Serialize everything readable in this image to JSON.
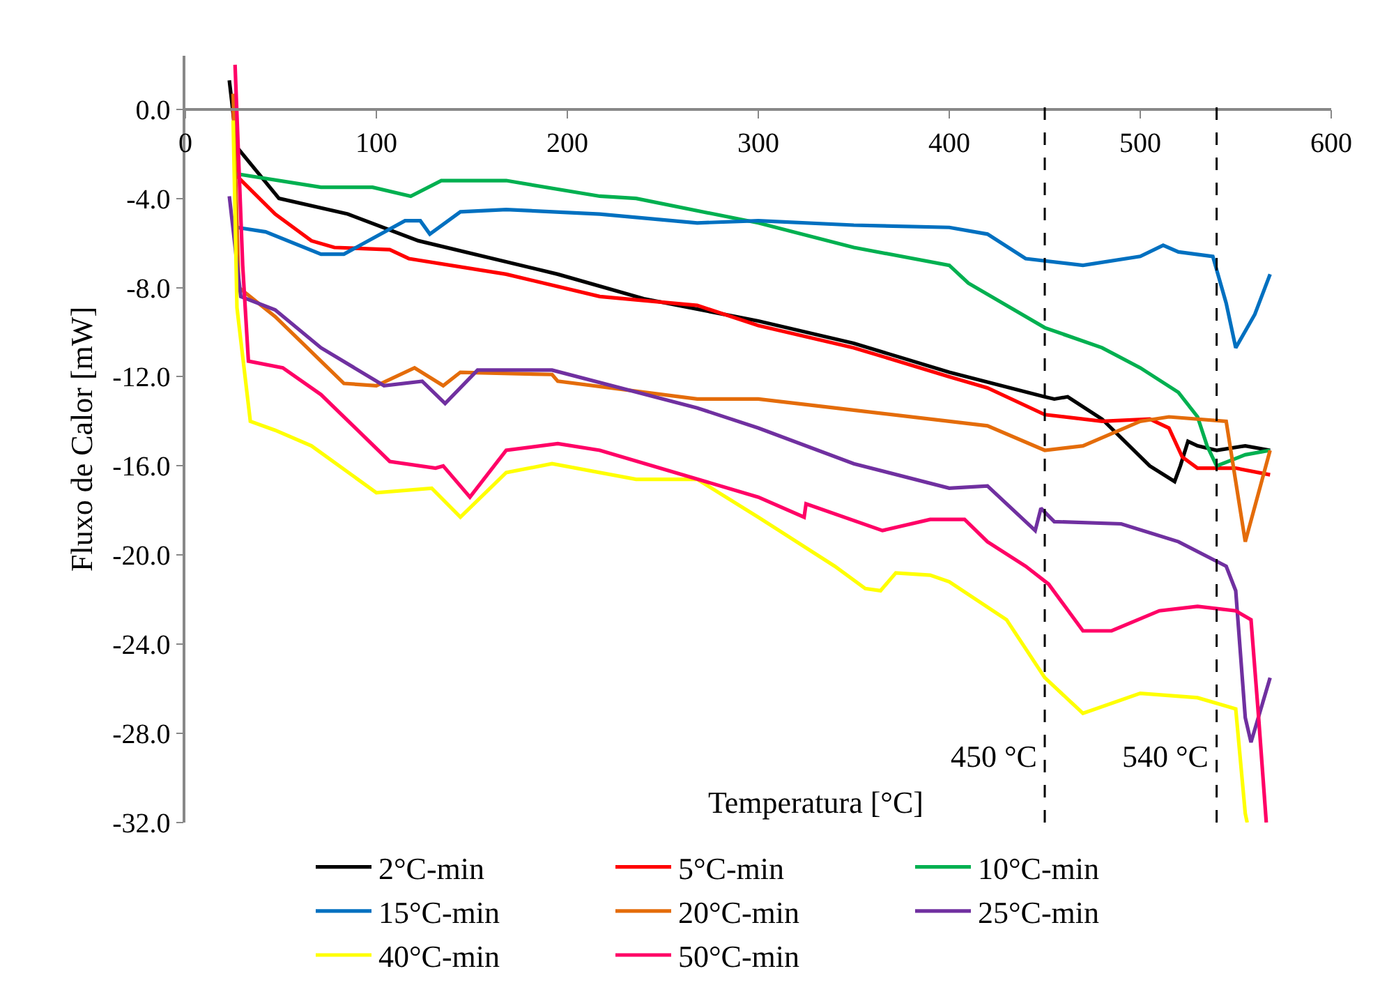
{
  "chart_data": {
    "type": "line",
    "xlabel": "Temperatura [°C]",
    "ylabel": "Fluxo de Calor [mW]",
    "xlim": [
      0,
      600
    ],
    "xticks": [
      0,
      100,
      200,
      300,
      400,
      500,
      600
    ],
    "ylim": [
      -32,
      2.4
    ],
    "yticks": [
      {
        "value": 0,
        "label": "0.0"
      },
      {
        "value": -4,
        "label": "-4.0"
      },
      {
        "value": -8,
        "label": "-8.0"
      },
      {
        "value": -12,
        "label": "-12.0"
      },
      {
        "value": -16,
        "label": "-16.0"
      },
      {
        "value": -20,
        "label": "-20.0"
      },
      {
        "value": -24,
        "label": "-24.0"
      },
      {
        "value": -28,
        "label": "-28.0"
      },
      {
        "value": -32,
        "label": "-32.0"
      }
    ],
    "grid": false,
    "legend": "bottom",
    "marker": "none",
    "line_style": "solid",
    "ref_lines": [
      {
        "axis": "x",
        "value": 450,
        "label": "450 °C",
        "color": "#000000",
        "line_style": "dashed"
      },
      {
        "axis": "x",
        "value": 540,
        "label": "540 °C",
        "color": "#000000",
        "line_style": "dashed"
      }
    ],
    "series": [
      {
        "name": "2°C-min",
        "color": "#000000",
        "x": [
          23,
          27,
          49,
          85,
          122,
          195,
          240,
          300,
          350,
          400,
          450,
          455,
          462,
          480,
          505,
          518,
          521,
          525,
          530,
          540,
          555,
          568
        ],
        "values": [
          1.3,
          -1.7,
          -4.0,
          -4.7,
          -5.9,
          -7.4,
          -8.5,
          -9.5,
          -10.5,
          -11.8,
          -12.9,
          -13.0,
          -12.9,
          -13.9,
          -16.0,
          -16.7,
          -16.0,
          -14.9,
          -15.1,
          -15.3,
          -15.1,
          -15.3
        ]
      },
      {
        "name": "5°C-min",
        "color": "#ff0000",
        "x": [
          25,
          27,
          47,
          66,
          78,
          107,
          117,
          168,
          217,
          268,
          300,
          350,
          400,
          420,
          450,
          480,
          505,
          515,
          522,
          530,
          550,
          568
        ],
        "values": [
          0.0,
          -3.0,
          -4.7,
          -5.9,
          -6.2,
          -6.3,
          -6.7,
          -7.4,
          -8.4,
          -8.8,
          -9.7,
          -10.7,
          -12.0,
          -12.5,
          -13.7,
          -14.0,
          -13.9,
          -14.3,
          -15.6,
          -16.1,
          -16.1,
          -16.4
        ]
      },
      {
        "name": "10°C-min",
        "color": "#00b050",
        "x": [
          27,
          71,
          98,
          118,
          134,
          168,
          217,
          236,
          300,
          350,
          400,
          410,
          450,
          480,
          500,
          520,
          530,
          535,
          540,
          555,
          568
        ],
        "values": [
          -2.9,
          -3.5,
          -3.5,
          -3.9,
          -3.2,
          -3.2,
          -3.9,
          -4.0,
          -5.1,
          -6.2,
          -7.0,
          -7.8,
          -9.8,
          -10.7,
          -11.6,
          -12.7,
          -13.8,
          -15.1,
          -16.0,
          -15.5,
          -15.3
        ]
      },
      {
        "name": "15°C-min",
        "color": "#0070c0",
        "x": [
          27,
          42,
          71,
          83,
          115,
          123,
          128,
          144,
          168,
          217,
          268,
          300,
          350,
          400,
          420,
          440,
          470,
          500,
          512,
          520,
          538,
          545,
          550,
          560,
          568
        ],
        "values": [
          -5.3,
          -5.5,
          -6.5,
          -6.5,
          -5.0,
          -5.0,
          -5.6,
          -4.6,
          -4.5,
          -4.7,
          -5.1,
          -5.0,
          -5.2,
          -5.3,
          -5.6,
          -6.7,
          -7.0,
          -6.6,
          -6.1,
          -6.4,
          -6.6,
          -8.7,
          -10.7,
          -9.2,
          -7.4
        ]
      },
      {
        "name": "20°C-min",
        "color": "#e46c0a",
        "x": [
          25,
          28,
          47,
          71,
          83,
          100,
          120,
          135,
          144,
          192,
          195,
          268,
          300,
          350,
          400,
          420,
          450,
          470,
          500,
          515,
          545,
          550,
          555,
          568
        ],
        "values": [
          0.7,
          -8.0,
          -9.3,
          -11.3,
          -12.3,
          -12.4,
          -11.6,
          -12.4,
          -11.8,
          -11.9,
          -12.2,
          -13.0,
          -13.0,
          -13.5,
          -14.0,
          -14.2,
          -15.3,
          -15.1,
          -14.0,
          -13.8,
          -14.0,
          -16.7,
          -19.4,
          -15.3
        ]
      },
      {
        "name": "25°C-min",
        "color": "#7030a0",
        "x": [
          23,
          29,
          47,
          71,
          104,
          124,
          136,
          153,
          192,
          268,
          300,
          350,
          400,
          420,
          445,
          448,
          455,
          490,
          520,
          545,
          550,
          555,
          558,
          568
        ],
        "values": [
          -3.9,
          -8.4,
          -9.0,
          -10.7,
          -12.4,
          -12.2,
          -13.2,
          -11.7,
          -11.7,
          -13.4,
          -14.3,
          -15.9,
          -17.0,
          -16.9,
          -18.9,
          -17.9,
          -18.5,
          -18.6,
          -19.4,
          -20.5,
          -21.6,
          -27.3,
          -28.4,
          -25.5
        ]
      },
      {
        "name": "40°C-min",
        "color": "#ffff00",
        "x": [
          25,
          27,
          34,
          47,
          66,
          100,
          129,
          144,
          168,
          192,
          236,
          268,
          300,
          340,
          356,
          364,
          372,
          390,
          400,
          430,
          450,
          470,
          500,
          530,
          550,
          555,
          556
        ],
        "values": [
          -0.5,
          -8.9,
          -14.0,
          -14.4,
          -15.1,
          -17.2,
          -17.0,
          -18.3,
          -16.3,
          -15.9,
          -16.6,
          -16.6,
          -18.3,
          -20.5,
          -21.5,
          -21.6,
          -20.8,
          -20.9,
          -21.2,
          -22.9,
          -25.5,
          -27.1,
          -26.2,
          -26.4,
          -26.9,
          -31.6,
          -32.0
        ]
      },
      {
        "name": "50°C-min",
        "color": "#ff0066",
        "x": [
          26,
          30,
          33,
          51,
          71,
          107,
          131,
          135,
          149,
          168,
          195,
          217,
          300,
          324,
          325,
          365,
          390,
          408,
          420,
          440,
          452,
          470,
          485,
          510,
          530,
          550,
          558,
          562,
          566
        ],
        "values": [
          2.0,
          -7.0,
          -11.3,
          -11.6,
          -12.8,
          -15.8,
          -16.1,
          -16.0,
          -17.4,
          -15.3,
          -15.0,
          -15.3,
          -17.4,
          -18.3,
          -17.7,
          -18.9,
          -18.4,
          -18.4,
          -19.4,
          -20.5,
          -21.3,
          -23.4,
          -23.4,
          -22.5,
          -22.3,
          -22.5,
          -22.9,
          -27.3,
          -32.0
        ]
      }
    ]
  }
}
